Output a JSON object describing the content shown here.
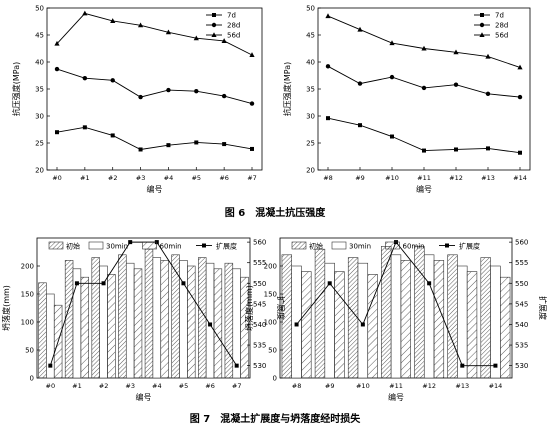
{
  "captions": {
    "fig6": "图 6　混凝土抗压强度",
    "fig7": "图 7　混凝土扩展度与坍落度经时损失"
  },
  "chart_data": [
    {
      "type": "line",
      "id": "fig6-left",
      "ylabel": "抗压强度(MPa)",
      "xlabel": "编号",
      "categories": [
        "#0",
        "#1",
        "#2",
        "#3",
        "#4",
        "#5",
        "#6",
        "#7"
      ],
      "ylim": [
        20,
        50
      ],
      "yticks": [
        20,
        25,
        30,
        35,
        40,
        45,
        50
      ],
      "legend": "top-right",
      "series": [
        {
          "name": "7d",
          "marker": "square",
          "values": [
            27.0,
            27.9,
            26.4,
            23.8,
            24.6,
            25.1,
            24.8,
            23.9
          ]
        },
        {
          "name": "28d",
          "marker": "circle",
          "values": [
            38.7,
            37.0,
            36.6,
            33.5,
            34.8,
            34.6,
            33.7,
            32.3
          ]
        },
        {
          "name": "56d",
          "marker": "triangle",
          "values": [
            43.4,
            49.0,
            47.6,
            46.8,
            45.5,
            44.4,
            43.9,
            41.3
          ]
        }
      ]
    },
    {
      "type": "line",
      "id": "fig6-right",
      "ylabel": "抗压强度(MPa)",
      "xlabel": "编号",
      "categories": [
        "#8",
        "#9",
        "#10",
        "#11",
        "#12",
        "#13",
        "#14"
      ],
      "ylim": [
        20,
        50
      ],
      "yticks": [
        20,
        25,
        30,
        35,
        40,
        45,
        50
      ],
      "legend": "top-right",
      "series": [
        {
          "name": "7d",
          "marker": "square",
          "values": [
            29.6,
            28.3,
            26.2,
            23.6,
            23.8,
            24.0,
            23.2
          ]
        },
        {
          "name": "28d",
          "marker": "circle",
          "values": [
            39.2,
            36.0,
            37.2,
            35.2,
            35.8,
            34.1,
            33.5
          ]
        },
        {
          "name": "56d",
          "marker": "triangle",
          "values": [
            48.5,
            46.0,
            43.5,
            42.5,
            41.8,
            41.0,
            39.0
          ]
        }
      ]
    },
    {
      "type": "bar",
      "id": "fig7-left",
      "ylabel": "坍落度(mm)",
      "y2label": "扩展度",
      "xlabel": "编号",
      "categories": [
        "#0",
        "#1",
        "#2",
        "#3",
        "#4",
        "#5",
        "#6",
        "#7"
      ],
      "ylim": [
        0,
        250
      ],
      "yticks": [
        0,
        50,
        100,
        150,
        200
      ],
      "y2lim": [
        527,
        561
      ],
      "y2ticks": [
        530,
        535,
        540,
        545,
        550,
        555,
        560
      ],
      "legend": "top",
      "series": [
        {
          "name": "初始",
          "values": [
            170,
            210,
            215,
            220,
            230,
            220,
            215,
            205
          ]
        },
        {
          "name": "30min",
          "values": [
            150,
            195,
            200,
            205,
            215,
            210,
            205,
            195
          ]
        },
        {
          "name": "60min",
          "values": [
            130,
            180,
            185,
            195,
            210,
            200,
            195,
            180
          ]
        }
      ],
      "line_series": {
        "name": "扩展度",
        "values": [
          530,
          550,
          550,
          560,
          560,
          550,
          540,
          530
        ]
      }
    },
    {
      "type": "bar",
      "id": "fig7-right",
      "ylabel": "坍落度(mm)",
      "y2label": "扩展度",
      "xlabel": "编号",
      "categories": [
        "#8",
        "#9",
        "#10",
        "#11",
        "#12",
        "#13",
        "#14"
      ],
      "ylim": [
        0,
        250
      ],
      "yticks": [
        0,
        50,
        100,
        150,
        200
      ],
      "y2lim": [
        527,
        561
      ],
      "y2ticks": [
        530,
        535,
        540,
        545,
        550,
        555,
        560
      ],
      "legend": "top",
      "series": [
        {
          "name": "初始",
          "values": [
            220,
            230,
            215,
            235,
            235,
            220,
            215
          ]
        },
        {
          "name": "30min",
          "values": [
            200,
            205,
            205,
            220,
            220,
            200,
            200
          ]
        },
        {
          "name": "60min",
          "values": [
            190,
            190,
            185,
            210,
            210,
            190,
            180
          ]
        }
      ],
      "line_series": {
        "name": "扩展度",
        "values": [
          540,
          550,
          540,
          560,
          550,
          530,
          530
        ]
      }
    }
  ]
}
